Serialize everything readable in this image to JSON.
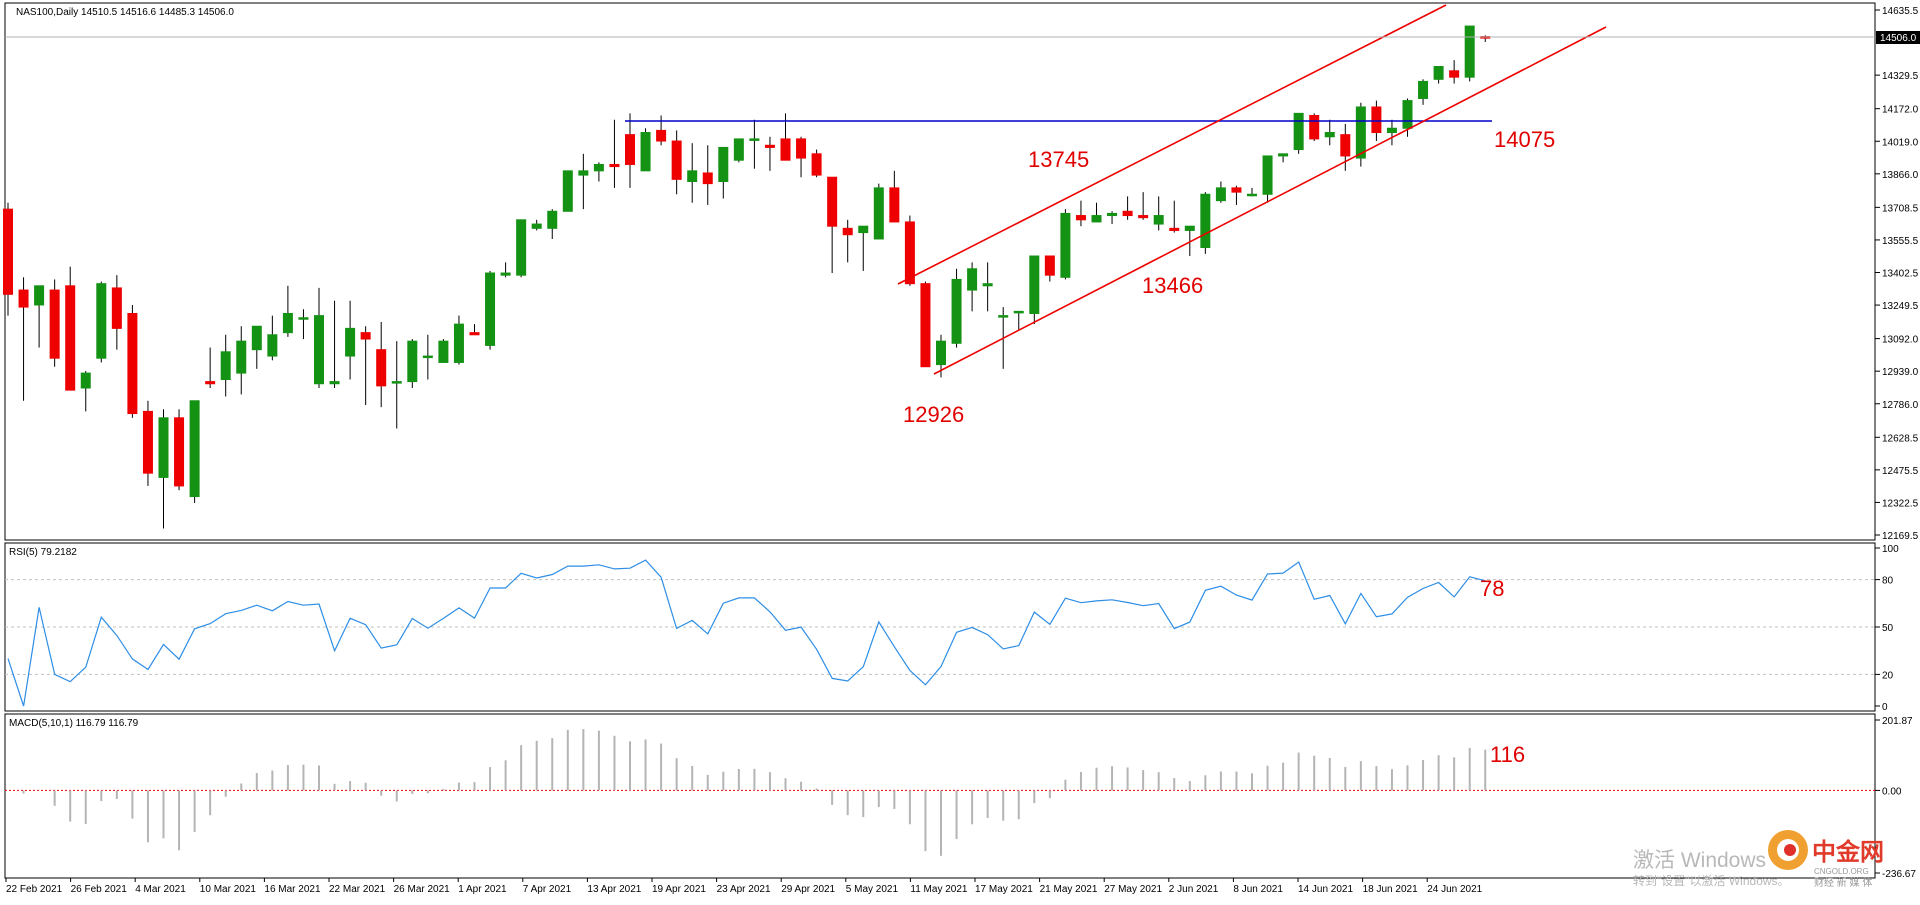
{
  "header": {
    "symbol_info": "NAS100,Daily   14510.5  14516.6  14485.3  14506.0",
    "rsi_label": "RSI(5) 79.2182",
    "macd_label": "MACD(5,10,1) 116.79 116.79"
  },
  "price_axis": {
    "ticks": [
      "14635.5",
      "14329.5",
      "14172.0",
      "14019.0",
      "13866.0",
      "13708.5",
      "13555.5",
      "13402.5",
      "13249.5",
      "13092.0",
      "12939.0",
      "12786.0",
      "12628.5",
      "12475.5",
      "12322.5",
      "12169.5"
    ],
    "current_price": "14506.0"
  },
  "rsi_axis": {
    "ticks": [
      "100",
      "80",
      "50",
      "20",
      "0"
    ]
  },
  "macd_axis": {
    "ticks": [
      "201.87",
      "0.00",
      "-236.67"
    ]
  },
  "date_axis": [
    "22 Feb 2021",
    "26 Feb 2021",
    "4 Mar 2021",
    "10 Mar 2021",
    "16 Mar 2021",
    "22 Mar 2021",
    "26 Mar 2021",
    "1 Apr 2021",
    "7 Apr 2021",
    "13 Apr 2021",
    "19 Apr 2021",
    "23 Apr 2021",
    "29 Apr 2021",
    "5 May 2021",
    "11 May 2021",
    "17 May 2021",
    "21 May 2021",
    "27 May 2021",
    "2 Jun 2021",
    "8 Jun 2021",
    "14 Jun 2021",
    "18 Jun 2021",
    "24 Jun 2021"
  ],
  "annotations": {
    "level_resistance": "14075",
    "high_swing": "13745",
    "low_swing": "13466",
    "channel_low": "12926",
    "rsi_value": "78",
    "macd_value": "116"
  },
  "watermark": {
    "activate_line": "激活 Windows",
    "activate_hint": "转到\"设置\"以激活 Windows。",
    "logo_text": "中金网",
    "logo_sub": "CNGOLD.ORG",
    "logo_tagline": "财经 新 媒 体"
  },
  "colors": {
    "bull": "#149214",
    "bear": "#ee0000",
    "resistance_line": "#0000cc",
    "channel_line": "#ee0000",
    "rsi_line": "#2e8ee6",
    "macd_bar": "#b4b4b4",
    "zero_line": "#ee0000"
  },
  "chart_data": {
    "type": "candlestick",
    "instrument": "NAS100",
    "timeframe": "Daily",
    "ohlc_last": {
      "open": 14510.5,
      "high": 14516.6,
      "low": 14485.3,
      "close": 14506.0
    },
    "candles": [
      [
        13700,
        13730,
        13200,
        13300
      ],
      [
        13320,
        13380,
        12800,
        13240
      ],
      [
        13250,
        13330,
        13050,
        13340
      ],
      [
        13320,
        13370,
        12960,
        13000
      ],
      [
        13340,
        13430,
        12850,
        12850
      ],
      [
        12860,
        12940,
        12750,
        12930
      ],
      [
        13000,
        13360,
        12980,
        13350
      ],
      [
        13330,
        13390,
        13040,
        13140
      ],
      [
        13210,
        13250,
        12720,
        12740
      ],
      [
        12750,
        12800,
        12400,
        12460
      ],
      [
        12440,
        12760,
        12200,
        12720
      ],
      [
        12720,
        12760,
        12380,
        12400
      ],
      [
        12350,
        12800,
        12320,
        12800
      ],
      [
        12890,
        13050,
        12860,
        12880
      ],
      [
        12900,
        13110,
        12820,
        13030
      ],
      [
        12930,
        13150,
        12830,
        13080
      ],
      [
        13040,
        13150,
        12950,
        13150
      ],
      [
        13010,
        13200,
        12990,
        13110
      ],
      [
        13120,
        13340,
        13100,
        13210
      ],
      [
        13190,
        13230,
        13090,
        13190
      ],
      [
        12880,
        13330,
        12860,
        13200
      ],
      [
        12880,
        13270,
        12860,
        12890
      ],
      [
        13010,
        13270,
        12900,
        13140
      ],
      [
        13120,
        13150,
        12780,
        13090
      ],
      [
        13040,
        13170,
        12770,
        12870
      ],
      [
        12890,
        13080,
        12670,
        12890
      ],
      [
        12890,
        13090,
        12860,
        13080
      ],
      [
        13010,
        13110,
        12900,
        13010
      ],
      [
        12980,
        13090,
        12980,
        13080
      ],
      [
        12980,
        13200,
        12970,
        13160
      ],
      [
        13120,
        13160,
        13110,
        13110
      ],
      [
        13060,
        13410,
        13040,
        13400
      ],
      [
        13390,
        13450,
        13380,
        13400
      ],
      [
        13390,
        13650,
        13380,
        13650
      ],
      [
        13610,
        13650,
        13600,
        13630
      ],
      [
        13610,
        13700,
        13560,
        13690
      ],
      [
        13690,
        13880,
        13690,
        13880
      ],
      [
        13860,
        13960,
        13700,
        13880
      ],
      [
        13880,
        13920,
        13830,
        13910
      ],
      [
        13910,
        14120,
        13800,
        13900
      ],
      [
        14050,
        14150,
        13800,
        13910
      ],
      [
        13880,
        14080,
        13880,
        14060
      ],
      [
        14070,
        14140,
        14000,
        14020
      ],
      [
        14020,
        14070,
        13770,
        13840
      ],
      [
        13830,
        14010,
        13730,
        13880
      ],
      [
        13870,
        14000,
        13720,
        13820
      ],
      [
        13830,
        13990,
        13750,
        13990
      ],
      [
        13930,
        14020,
        13920,
        14030
      ],
      [
        14030,
        14120,
        13890,
        14030
      ],
      [
        14000,
        14040,
        13880,
        13990
      ],
      [
        14030,
        14150,
        13930,
        13930
      ],
      [
        14030,
        14040,
        13850,
        13940
      ],
      [
        13960,
        13980,
        13850,
        13860
      ],
      [
        13850,
        13850,
        13400,
        13620
      ],
      [
        13610,
        13650,
        13450,
        13580
      ],
      [
        13590,
        13610,
        13410,
        13620
      ],
      [
        13560,
        13820,
        13570,
        13800
      ],
      [
        13800,
        13880,
        13660,
        13640
      ],
      [
        13640,
        13670,
        13340,
        13350
      ],
      [
        13350,
        13360,
        12970,
        12960
      ],
      [
        12970,
        13110,
        12910,
        13080
      ],
      [
        13070,
        13420,
        13050,
        13370
      ],
      [
        13320,
        13450,
        13220,
        13420
      ],
      [
        13340,
        13450,
        13220,
        13350
      ],
      [
        13200,
        13240,
        12950,
        13200
      ],
      [
        13220,
        13220,
        13130,
        13220
      ],
      [
        13210,
        13470,
        13160,
        13480
      ],
      [
        13480,
        13480,
        13360,
        13390
      ],
      [
        13380,
        13700,
        13370,
        13680
      ],
      [
        13670,
        13740,
        13620,
        13650
      ],
      [
        13640,
        13730,
        13640,
        13670
      ],
      [
        13670,
        13690,
        13630,
        13680
      ],
      [
        13690,
        13760,
        13650,
        13670
      ],
      [
        13670,
        13780,
        13650,
        13660
      ],
      [
        13630,
        13760,
        13600,
        13670
      ],
      [
        13610,
        13740,
        13590,
        13600
      ],
      [
        13600,
        13620,
        13480,
        13620
      ],
      [
        13520,
        13780,
        13490,
        13770
      ],
      [
        13740,
        13830,
        13730,
        13800
      ],
      [
        13800,
        13810,
        13720,
        13780
      ],
      [
        13770,
        13800,
        13760,
        13770
      ],
      [
        13770,
        13950,
        13730,
        13950
      ],
      [
        13950,
        13960,
        13920,
        13960
      ],
      [
        13980,
        14150,
        13960,
        14150
      ],
      [
        14140,
        14150,
        14020,
        14030
      ],
      [
        14040,
        14120,
        14000,
        14060
      ],
      [
        14050,
        14100,
        13880,
        13950
      ],
      [
        13940,
        14200,
        13900,
        14180
      ],
      [
        14180,
        14210,
        14020,
        14060
      ],
      [
        14060,
        14120,
        14000,
        14080
      ],
      [
        14080,
        14220,
        14040,
        14210
      ],
      [
        14220,
        14310,
        14190,
        14300
      ],
      [
        14310,
        14370,
        14290,
        14370
      ],
      [
        14350,
        14400,
        14290,
        14320
      ],
      [
        14320,
        14560,
        14300,
        14560
      ],
      [
        14510.5,
        14516.6,
        14485.3,
        14506.0
      ]
    ],
    "rsi": {
      "label": "RSI(5)",
      "value": 79.2182,
      "levels": [
        80,
        50,
        20
      ],
      "ylim": [
        0,
        100
      ]
    },
    "macd": {
      "label": "MACD(5,10,1)",
      "value": 116.79,
      "ylim": [
        -236.67,
        201.87
      ]
    },
    "annotations_values": {
      "resistance": 14075,
      "swing_high": 13745,
      "swing_low": 13466,
      "low": 12926
    }
  }
}
